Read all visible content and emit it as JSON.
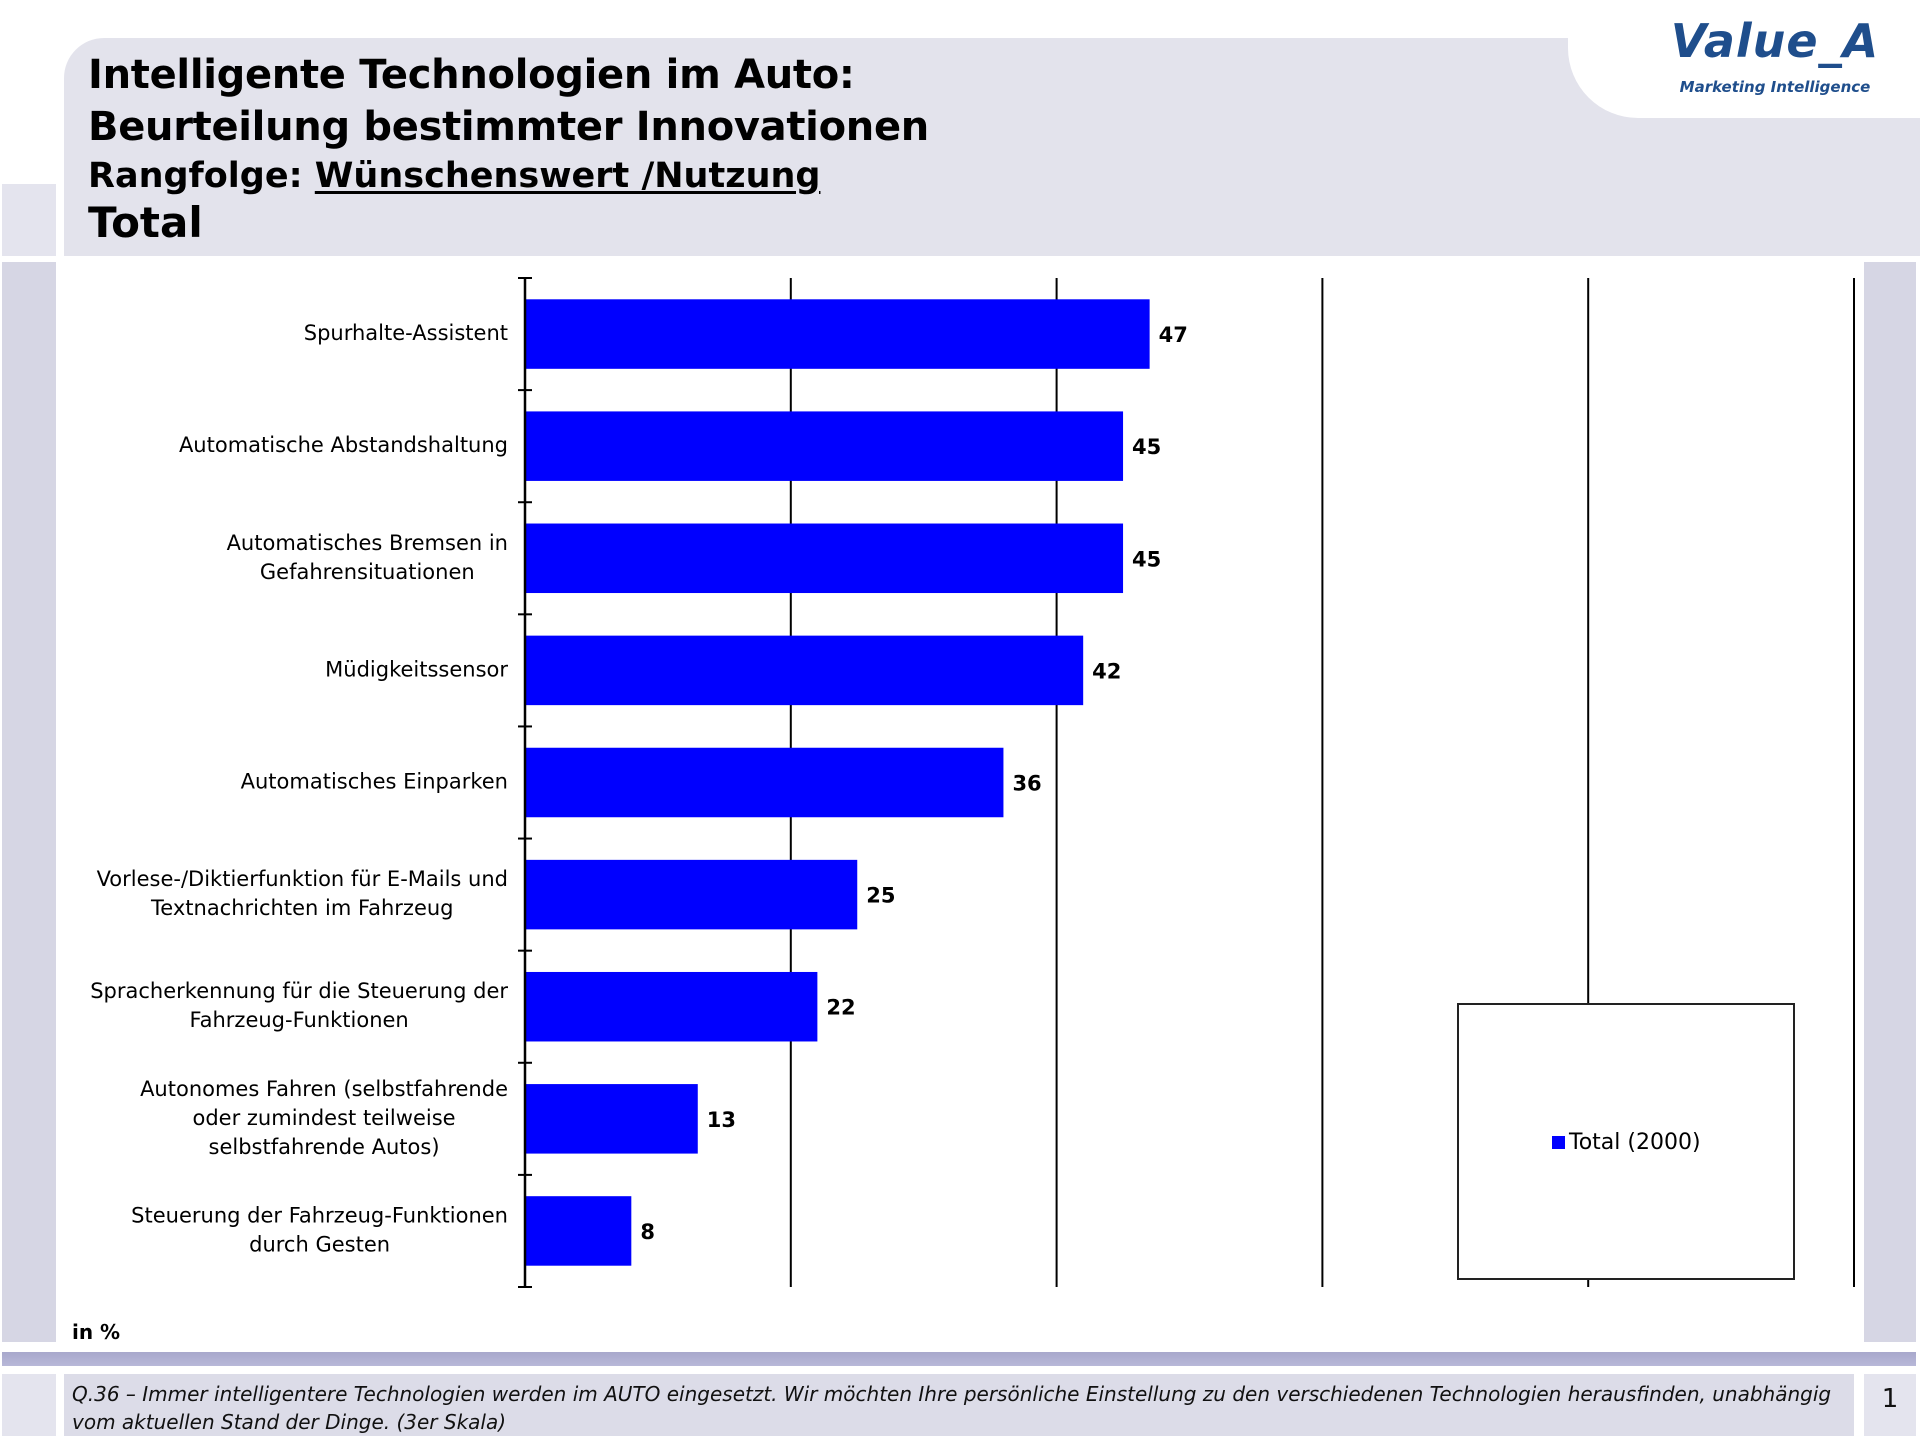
{
  "header": {
    "title_line1": "Intelligente Technologien im Auto:",
    "title_line2": "Beurteilung bestimmter Innovationen",
    "subtitle_prefix": "Rangfolge: ",
    "subtitle_underlined": "Wünschenswert /Nutzung",
    "total_label": "Total"
  },
  "logo": {
    "main": "Value_A",
    "sub": "Marketing Intelligence"
  },
  "unit_label": "in %",
  "footer": {
    "question_text": "Q.36 – Immer intelligentere Technologien werden im AUTO eingesetzt. Wir möchten Ihre persönliche Einstellung zu den verschiedenen Technologien herausfinden, unabhängig vom aktuellen Stand der Dinge. (3er Skala)",
    "page_number": "1"
  },
  "colors": {
    "bar": "#0000ff",
    "gridline": "#000000",
    "header_band": "#e3e3ec",
    "logo": "#1f4e8c"
  },
  "chart_data": {
    "type": "bar",
    "orientation": "horizontal",
    "title": "Intelligente Technologien im Auto: Beurteilung bestimmter Innovationen",
    "xlabel": "in %",
    "ylabel": "",
    "xlim": [
      0,
      100
    ],
    "gridlines_at": [
      20,
      40,
      60,
      80,
      100
    ],
    "grid": true,
    "legend_position": "bottom-right",
    "categories": [
      [
        "Spurhalte-Assistent"
      ],
      [
        "Automatische Abstandshaltung"
      ],
      [
        "Automatisches Bremsen in",
        "Gefahrensituationen"
      ],
      [
        "Müdigkeitssensor"
      ],
      [
        "Automatisches Einparken"
      ],
      [
        "Vorlese-/Diktierfunktion für E-Mails und",
        "Textnachrichten im Fahrzeug"
      ],
      [
        "Spracherkennung für die Steuerung der",
        "Fahrzeug-Funktionen"
      ],
      [
        "Autonomes Fahren (selbstfahrende",
        "oder zumindest teilweise",
        "selbstfahrende Autos)"
      ],
      [
        "Steuerung der Fahrzeug-Funktionen",
        "durch Gesten"
      ]
    ],
    "series": [
      {
        "name": "Total (2000)",
        "values": [
          47,
          45,
          45,
          42,
          36,
          25,
          22,
          13,
          8
        ],
        "labels": [
          "47",
          "45",
          "45",
          "42",
          "36",
          "25",
          "22",
          "13",
          "8"
        ]
      }
    ]
  }
}
